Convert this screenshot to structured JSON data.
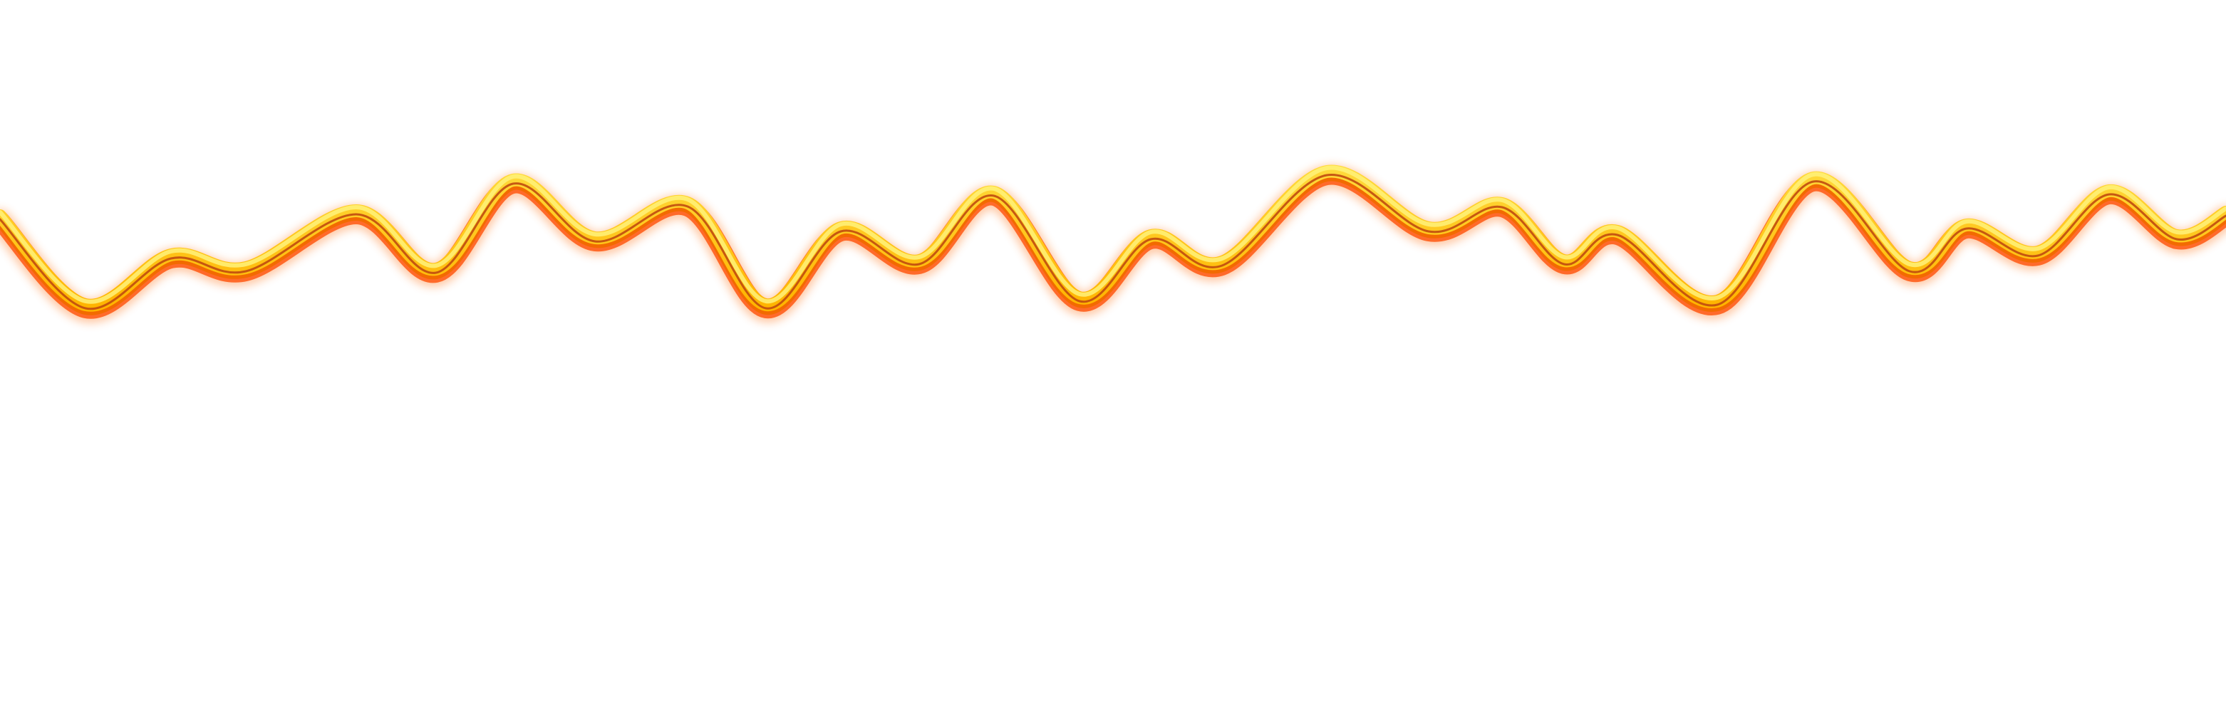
{
  "wave": {
    "shape": "wavy-ribbon",
    "colors": {
      "glow": "#ff8a3d",
      "outer_edge": "#ff6a2a",
      "inner_edge": "#f26a00",
      "body_top": "#ffd93a",
      "body_bottom": "#ffb400",
      "highlight": "#fff27a",
      "inner_line": "#c04a10",
      "background": "#ffffff"
    }
  }
}
